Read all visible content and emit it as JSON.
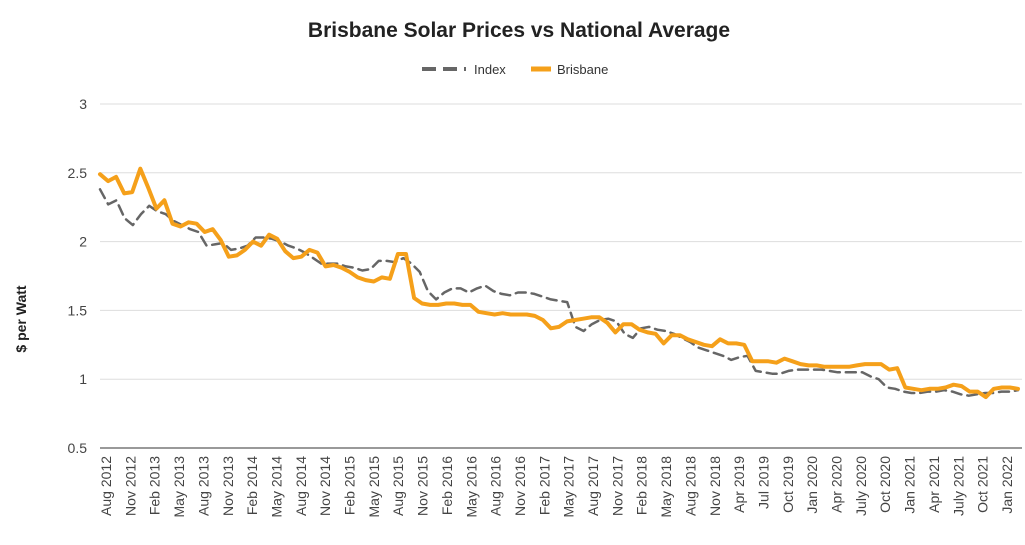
{
  "chart_data": {
    "type": "line",
    "title": "Brisbane Solar Prices vs National Average",
    "ylabel": "$ per Watt",
    "xlabel": "",
    "ylim": [
      0.5,
      3
    ],
    "yticks": [
      "3",
      "2.5",
      "2",
      "1.5",
      "1",
      "0.5"
    ],
    "ytick_values": [
      3,
      2.5,
      2,
      1.5,
      1,
      0.5
    ],
    "grid": true,
    "legend_position": "top-center",
    "x_tick_labels": [
      "Aug 2012",
      "Nov 2012",
      "Feb 2013",
      "May 2013",
      "Aug 2013",
      "Nov 2013",
      "Feb 2014",
      "May 2014",
      "Aug 2014",
      "Nov 2014",
      "Feb 2015",
      "May 2015",
      "Aug 2015",
      "Nov 2015",
      "Feb 2016",
      "May 2016",
      "Aug 2016",
      "Nov 2016",
      "Feb 2017",
      "May 2017",
      "Aug 2017",
      "Nov 2017",
      "Feb 2018",
      "May 2018",
      "Aug 2018",
      "Nov 2018",
      "Apr 2019",
      "Jul 2019",
      "Oct 2019",
      "Jan 2020",
      "Apr 2020",
      "July 2020",
      "Oct 2020",
      "Jan 2021",
      "Apr 2021",
      "July 2021",
      "Oct 2021",
      "Jan 2022"
    ],
    "series": [
      {
        "name": "Index",
        "color": "#666666",
        "style": "dashed",
        "values": [
          2.38,
          2.27,
          2.3,
          2.17,
          2.12,
          2.2,
          2.26,
          2.22,
          2.2,
          2.15,
          2.12,
          2.09,
          2.07,
          1.97,
          1.98,
          1.99,
          1.94,
          1.95,
          1.97,
          2.03,
          2.03,
          2.02,
          2.0,
          1.97,
          1.95,
          1.92,
          1.88,
          1.84,
          1.84,
          1.84,
          1.82,
          1.81,
          1.79,
          1.8,
          1.86,
          1.86,
          1.85,
          1.88,
          1.84,
          1.78,
          1.64,
          1.58,
          1.63,
          1.66,
          1.66,
          1.63,
          1.66,
          1.68,
          1.64,
          1.62,
          1.61,
          1.63,
          1.63,
          1.62,
          1.6,
          1.58,
          1.57,
          1.56,
          1.38,
          1.35,
          1.4,
          1.43,
          1.44,
          1.42,
          1.33,
          1.3,
          1.37,
          1.38,
          1.36,
          1.35,
          1.33,
          1.3,
          1.27,
          1.23,
          1.21,
          1.19,
          1.17,
          1.14,
          1.16,
          1.17,
          1.06,
          1.05,
          1.04,
          1.04,
          1.06,
          1.07,
          1.07,
          1.07,
          1.07,
          1.06,
          1.05,
          1.05,
          1.05,
          1.05,
          1.02,
          1.0,
          0.94,
          0.93,
          0.91,
          0.9,
          0.9,
          0.91,
          0.91,
          0.92,
          0.91,
          0.89,
          0.88,
          0.89,
          0.9,
          0.9,
          0.91,
          0.91,
          0.92
        ]
      },
      {
        "name": "Brisbane",
        "color": "#f5a01a",
        "style": "solid",
        "values": [
          2.49,
          2.44,
          2.47,
          2.35,
          2.36,
          2.53,
          2.39,
          2.24,
          2.3,
          2.13,
          2.11,
          2.14,
          2.13,
          2.07,
          2.09,
          2.01,
          1.89,
          1.9,
          1.94,
          2.0,
          1.97,
          2.05,
          2.02,
          1.93,
          1.88,
          1.89,
          1.94,
          1.92,
          1.82,
          1.83,
          1.81,
          1.78,
          1.74,
          1.72,
          1.71,
          1.74,
          1.73,
          1.91,
          1.91,
          1.59,
          1.55,
          1.54,
          1.54,
          1.55,
          1.55,
          1.54,
          1.54,
          1.49,
          1.48,
          1.47,
          1.48,
          1.47,
          1.47,
          1.47,
          1.46,
          1.43,
          1.37,
          1.38,
          1.42,
          1.43,
          1.44,
          1.45,
          1.45,
          1.41,
          1.34,
          1.4,
          1.4,
          1.36,
          1.34,
          1.33,
          1.26,
          1.32,
          1.32,
          1.29,
          1.27,
          1.25,
          1.24,
          1.29,
          1.26,
          1.26,
          1.25,
          1.13,
          1.13,
          1.13,
          1.12,
          1.15,
          1.13,
          1.11,
          1.1,
          1.1,
          1.09,
          1.09,
          1.09,
          1.09,
          1.1,
          1.11,
          1.11,
          1.11,
          1.07,
          1.08,
          0.94,
          0.93,
          0.92,
          0.93,
          0.93,
          0.94,
          0.96,
          0.95,
          0.91,
          0.91,
          0.87,
          0.93,
          0.94,
          0.94,
          0.93
        ]
      }
    ]
  }
}
